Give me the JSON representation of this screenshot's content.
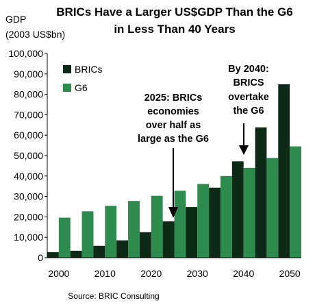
{
  "chart_data": {
    "type": "bar",
    "title": [
      "BRICs Have a Larger US$GDP Than the G6",
      "in Less Than 40 Years"
    ],
    "ylabel": [
      "GDP",
      "(2003 US$bn)"
    ],
    "ylim": [
      0,
      100000
    ],
    "yticks": [
      "0",
      "10,000",
      "20,000",
      "30,000",
      "40,000",
      "50,000",
      "60,000",
      "70,000",
      "80,000",
      "90,000",
      "100,000"
    ],
    "x_tick_labels": [
      "2000",
      "2010",
      "2020",
      "2030",
      "2040",
      "2050"
    ],
    "categories": [
      "2000",
      "2005",
      "2010",
      "2015",
      "2020",
      "2025",
      "2030",
      "2035",
      "2040",
      "2045",
      "2050"
    ],
    "series": [
      {
        "name": "BRICs",
        "color": "#0d2a17",
        "values": [
          2700,
          3400,
          5800,
          8500,
          12500,
          17800,
          24800,
          34300,
          47200,
          63800,
          84900
        ]
      },
      {
        "name": "G6",
        "color": "#2e8b4e",
        "values": [
          19600,
          22700,
          25400,
          27800,
          30300,
          32800,
          36100,
          40000,
          44000,
          48800,
          54500
        ]
      }
    ],
    "legend_position": "top-left",
    "grid": false,
    "annotations": [
      {
        "lines": [
          "2025: BRICs",
          "economies",
          "over half as",
          "large as the G6"
        ]
      },
      {
        "lines": [
          "By 2040:",
          "BRICS",
          "overtake",
          "the G6"
        ]
      }
    ],
    "source": "Source: BRIC Consulting"
  }
}
